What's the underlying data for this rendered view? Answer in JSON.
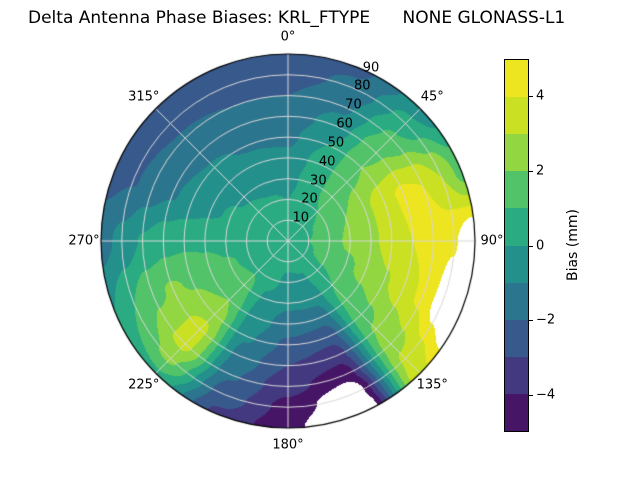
{
  "title": "Delta Antenna Phase Biases: KRL_FTYPE      NONE GLONASS-L1",
  "chart_data": {
    "type": "heatmap",
    "projection": "polar",
    "title": "Delta Antenna Phase Biases: KRL_FTYPE      NONE GLONASS-L1",
    "theta_ticks_deg": [
      0,
      45,
      90,
      135,
      180,
      225,
      270,
      315
    ],
    "theta_tick_labels": [
      "0°",
      "45°",
      "90°",
      "135°",
      "180°",
      "225°",
      "270°",
      "315°"
    ],
    "radial_ticks": [
      10,
      20,
      30,
      40,
      50,
      60,
      70,
      80,
      90
    ],
    "radial_tick_labels": [
      "10",
      "20",
      "30",
      "40",
      "50",
      "60",
      "70",
      "80",
      "90"
    ],
    "radial_max": 90,
    "radial_label_angle_deg": 25,
    "grid": {
      "color": "#d9d9d9",
      "spine_color": "#000000",
      "mask_color": "#ffffff"
    },
    "colorbar": {
      "label": "Bias (mm)",
      "tick_values": [
        4,
        2,
        0,
        -2,
        -4
      ],
      "tick_labels": [
        "4",
        "2",
        "0",
        "−2",
        "−4"
      ],
      "vmin": -5,
      "vmax": 5,
      "n_levels": 10,
      "colormap": "viridis",
      "colormap_stops": [
        "#440154",
        "#482878",
        "#3e4989",
        "#31688e",
        "#26828e",
        "#1f9e89",
        "#35b779",
        "#6ece58",
        "#b5de2b",
        "#dce319",
        "#fde725"
      ]
    },
    "azimuth_grid_deg": [
      0,
      22.5,
      45,
      67.5,
      90,
      112.5,
      135,
      157.5,
      180,
      202.5,
      225,
      247.5,
      270,
      292.5,
      315,
      337.5
    ],
    "zenith_grid": [
      0,
      10,
      20,
      30,
      40,
      50,
      60,
      70,
      80,
      90
    ],
    "masking_note": "values outside vmin/vmax render white (no data)",
    "bias_values_mm": [
      [
        0.5,
        0.3,
        0.0,
        -0.4,
        -0.8,
        -1.2,
        -1.6,
        -2.0,
        -2.4,
        -2.6
      ],
      [
        0.5,
        0.5,
        0.6,
        0.6,
        0.4,
        0.0,
        -0.6,
        -1.2,
        -1.8,
        -2.2
      ],
      [
        0.5,
        0.7,
        1.0,
        1.4,
        1.8,
        2.0,
        1.8,
        1.2,
        0.4,
        -0.6
      ],
      [
        0.6,
        0.9,
        1.4,
        2.0,
        2.8,
        3.6,
        4.2,
        4.0,
        3.0,
        1.6
      ],
      [
        0.6,
        1.0,
        1.6,
        2.2,
        2.8,
        3.4,
        4.0,
        4.6,
        4.9,
        6.2
      ],
      [
        0.6,
        0.9,
        1.3,
        1.8,
        2.3,
        2.9,
        3.5,
        4.2,
        5.6,
        7.0
      ],
      [
        0.5,
        0.6,
        0.8,
        1.0,
        1.3,
        1.7,
        2.1,
        2.6,
        3.2,
        3.8
      ],
      [
        0.5,
        0.3,
        -0.1,
        -0.7,
        -1.6,
        -2.6,
        -3.6,
        -4.6,
        -6.0,
        -7.0
      ],
      [
        0.5,
        0.2,
        -0.2,
        -0.8,
        -1.5,
        -2.2,
        -3.0,
        -3.7,
        -4.3,
        -4.7
      ],
      [
        0.5,
        0.4,
        0.2,
        -0.1,
        -0.5,
        -0.9,
        -1.4,
        -1.9,
        -2.5,
        -3.2
      ],
      [
        0.5,
        0.6,
        0.9,
        1.4,
        2.0,
        2.7,
        3.3,
        3.3,
        2.2,
        0.8
      ],
      [
        0.5,
        0.6,
        0.8,
        1.1,
        1.5,
        1.9,
        2.1,
        1.8,
        1.0,
        0.0
      ],
      [
        0.5,
        0.5,
        0.6,
        0.7,
        0.8,
        0.8,
        0.6,
        0.1,
        -0.7,
        -1.4
      ],
      [
        0.5,
        0.4,
        0.3,
        0.1,
        -0.2,
        -0.6,
        -1.1,
        -1.6,
        -2.1,
        -2.4
      ],
      [
        0.5,
        0.4,
        0.2,
        -0.1,
        -0.4,
        -0.9,
        -1.4,
        -1.9,
        -2.3,
        -2.5
      ],
      [
        0.5,
        0.3,
        0.1,
        -0.3,
        -0.7,
        -1.1,
        -1.5,
        -2.0,
        -2.4,
        -2.6
      ]
    ]
  }
}
